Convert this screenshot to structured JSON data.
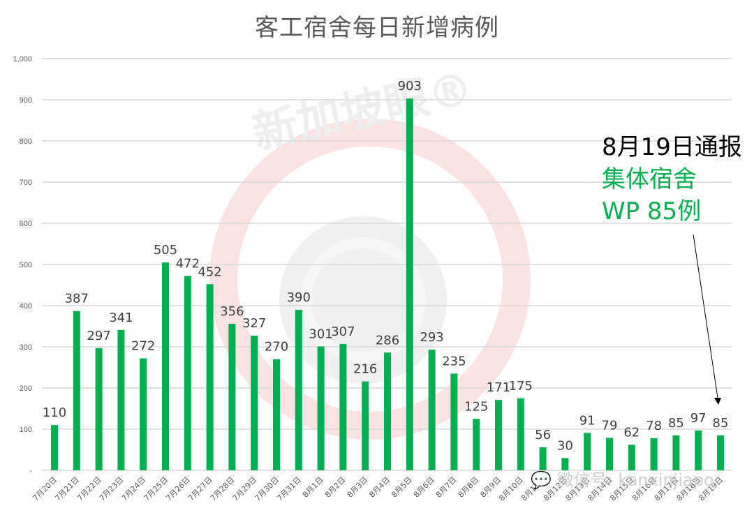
{
  "chart_data": {
    "type": "bar",
    "title": "客工宿舍每日新增病例",
    "xlabel": "",
    "ylabel": "",
    "ylim": [
      0,
      1000
    ],
    "yticks": [
      "-",
      "100",
      "200",
      "300",
      "400",
      "500",
      "600",
      "700",
      "800",
      "900",
      "1,000"
    ],
    "grid": true,
    "legend": null,
    "bar_color": "#00b050",
    "categories": [
      "7月20日",
      "7月21日",
      "7月22日",
      "7月23日",
      "7月24日",
      "7月25日",
      "7月26日",
      "7月27日",
      "7月28日",
      "7月29日",
      "7月30日",
      "7月31日",
      "8月1日",
      "8月2日",
      "8月3日",
      "8月4日",
      "8月5日",
      "8月6日",
      "8月7日",
      "8月8日",
      "8月9日",
      "8月10日",
      "8月11日",
      "8月12日",
      "8月13日",
      "8月14日",
      "8月15日",
      "8月16日",
      "8月17日",
      "8月18日",
      "8月19日"
    ],
    "values": [
      110,
      387,
      297,
      341,
      272,
      505,
      472,
      452,
      356,
      327,
      270,
      390,
      301,
      307,
      216,
      286,
      903,
      293,
      235,
      125,
      171,
      175,
      56,
      30,
      91,
      79,
      62,
      78,
      85,
      97,
      85
    ],
    "annotations": [
      {
        "lines": [
          "8月19日通报",
          "集体宿舍",
          "WP 85例"
        ],
        "colors": [
          "#000000",
          "#00b050",
          "#00b050"
        ],
        "arrow_to": "8月19日"
      }
    ]
  },
  "watermark": {
    "logo_text": "新加坡眼®",
    "wechat_text": "微信号: kanxinjiapo"
  }
}
